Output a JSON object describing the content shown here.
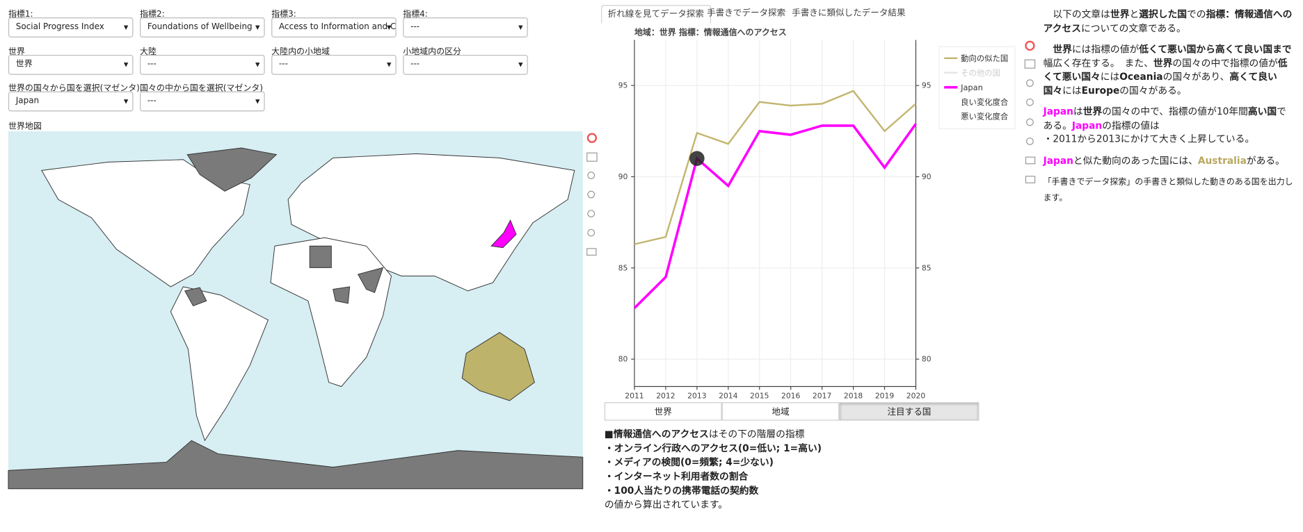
{
  "controls": [
    {
      "label": "指標1:",
      "value": "Social Progress Index"
    },
    {
      "label": "指標2:",
      "value": "Foundations of Wellbeing"
    },
    {
      "label": "指標3:",
      "value": "Access to Information and Co"
    },
    {
      "label": "指標4:",
      "value": "---"
    },
    {
      "label": "世界",
      "value": "世界"
    },
    {
      "label": "大陸",
      "value": "---"
    },
    {
      "label": "大陸内の小地域",
      "value": "---"
    },
    {
      "label": "小地域内の区分",
      "value": "---"
    },
    {
      "label": "世界の国々から国を選択(マゼンタ)",
      "value": "Japan"
    },
    {
      "label": "国々の中から国を選択(マゼンタ)",
      "value": "---"
    }
  ],
  "map_title": "世界地図",
  "tabs": [
    "折れ線を見てデータ探索",
    "手書きでデータ探索",
    "手書きに類似したデータ結果"
  ],
  "chart_data": {
    "type": "line",
    "title": "地域：世界  指標：情報通信へのアクセス",
    "x": [
      2011,
      2012,
      2013,
      2014,
      2015,
      2016,
      2017,
      2018,
      2019,
      2020
    ],
    "xlim": [
      2011,
      2020
    ],
    "xticks": [
      2011,
      2012,
      2013,
      2014,
      2015,
      2016,
      2017,
      2018,
      2019,
      2020
    ],
    "ylim": [
      78.5,
      97.5
    ],
    "yticks": [
      80,
      85,
      90,
      95
    ],
    "grid": true,
    "series": [
      {
        "name": "動向の似た国",
        "color": "#c2b56e",
        "values": [
          86.3,
          86.7,
          92.4,
          91.8,
          94.1,
          93.9,
          94.0,
          94.7,
          92.5,
          94.0
        ]
      },
      {
        "name": "Japan",
        "color": "#ff00ff",
        "values": [
          82.8,
          84.5,
          91.0,
          89.5,
          92.5,
          92.3,
          92.8,
          92.8,
          90.5,
          92.9
        ]
      }
    ],
    "extra_legend": [
      {
        "name": "その他の国",
        "color": "#e4e4e4"
      },
      {
        "name": "良い変化度合"
      },
      {
        "name": "悪い変化度合"
      }
    ],
    "highlight": {
      "series": 1,
      "index": 2
    }
  },
  "buttons": [
    "世界",
    "地域",
    "注目する国"
  ],
  "selected_button": 2,
  "description": [
    [
      {
        "text": "■情報通信へのアクセス",
        "style": "bold"
      },
      {
        "text": "はその下の階層の指標"
      }
    ],
    [
      {
        "text": "・オンライン行政へのアクセス(0=低い; 1=高い)",
        "style": "bold"
      }
    ],
    [
      {
        "text": "・メディアの検閲(0=頻繁; 4=少ない)",
        "style": "bold"
      }
    ],
    [
      {
        "text": "・インターネット利用者数の割合",
        "style": "bold"
      }
    ],
    [
      {
        "text": "・100人当たりの携帯電話の契約数",
        "style": "bold"
      }
    ],
    [
      {
        "text": "の値から算出されています。"
      }
    ]
  ],
  "summary": [
    [
      {
        "text": "　以下の文章は"
      },
      {
        "text": "世界",
        "style": "bold"
      },
      {
        "text": "と"
      },
      {
        "text": "選択した国",
        "style": "bold"
      },
      {
        "text": "での"
      },
      {
        "text": "指標：情報通信へのアクセス",
        "style": "bold"
      },
      {
        "text": "についての文章である。"
      }
    ],
    [
      {
        "text": "　"
      },
      {
        "text": "世界",
        "style": "bold"
      },
      {
        "text": "には指標の値が"
      },
      {
        "text": "低くて悪い国から高くて良い国まで",
        "style": "bold"
      },
      {
        "text": "幅広く存在する。　また、"
      },
      {
        "text": "世界",
        "style": "bold"
      },
      {
        "text": "の国々の中で指標の値が"
      },
      {
        "text": "低くて悪い国々",
        "style": "bold"
      },
      {
        "text": "には"
      },
      {
        "text": "Oceania",
        "style": "bold"
      },
      {
        "text": "の国々があり、"
      },
      {
        "text": "高くて良い国々",
        "style": "bold"
      },
      {
        "text": "には"
      },
      {
        "text": "Europe",
        "style": "bold"
      },
      {
        "text": "の国々がある。"
      }
    ],
    [
      {
        "text": "Japan",
        "style": "magenta"
      },
      {
        "text": "は"
      },
      {
        "text": "世界",
        "style": "bold"
      },
      {
        "text": "の国々の中で、指標の値が10年間"
      },
      {
        "text": "高い国",
        "style": "bold"
      },
      {
        "text": "である。"
      },
      {
        "text": "Japan",
        "style": "magenta"
      },
      {
        "text": "の指標の値は"
      }
    ],
    [
      {
        "text": "・2011から2013にかけて大きく上昇している。"
      }
    ],
    [
      {
        "text": "Japan",
        "style": "magenta"
      },
      {
        "text": "と似た動向のあった国には、"
      },
      {
        "text": "Australia",
        "style": "olive"
      },
      {
        "text": "がある。"
      }
    ],
    [
      {
        "text": "「手書きでデータ探索」の手書きと類似した動きのある国を出力します。",
        "style": "small"
      }
    ]
  ]
}
